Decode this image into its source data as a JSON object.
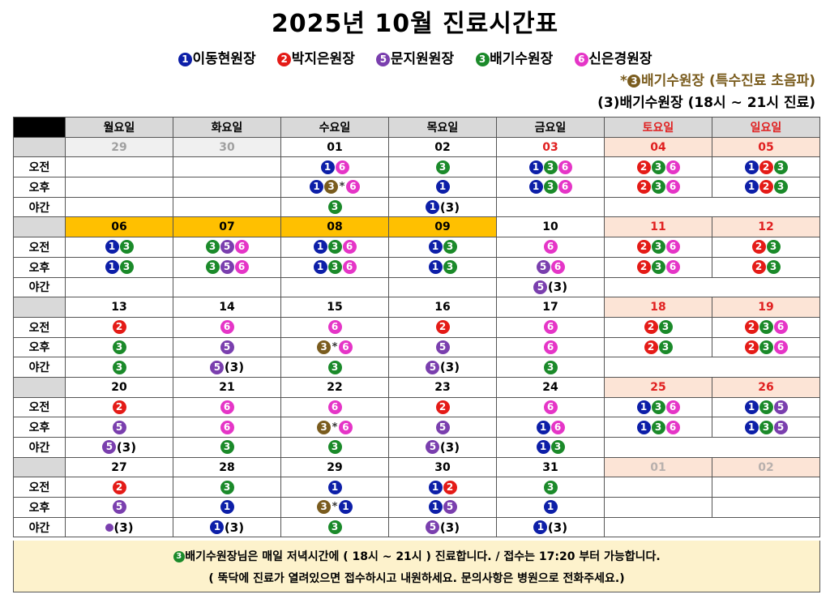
{
  "title": "2025년 10월 진료시간표",
  "legend": [
    {
      "num": "1",
      "color": "#0d1fa8",
      "name": "이동현원장"
    },
    {
      "num": "2",
      "color": "#e41b17",
      "name": "박지은원장"
    },
    {
      "num": "5",
      "color": "#7a3fae",
      "name": "문지원원장"
    },
    {
      "num": "3",
      "color": "#1b8a2a",
      "name": "배기수원장"
    },
    {
      "num": "6",
      "color": "#e535c7",
      "name": "신은경원장"
    }
  ],
  "notes": {
    "special_prefix": "*",
    "special_text": "배기수원장 (특수진료 초음파)",
    "evening": "(3)배기수원장 (18시 ~ 21시 진료)"
  },
  "days": [
    "월요일",
    "화요일",
    "수요일",
    "목요일",
    "금요일",
    "토요일",
    "일요일"
  ],
  "row_labels": {
    "am": "오전",
    "pm": "오후",
    "night": "야간"
  },
  "weeks": [
    {
      "dates": [
        "29",
        "30",
        "01",
        "02",
        "03",
        "04",
        "05"
      ],
      "am": [
        [],
        [],
        [
          "1",
          "6"
        ],
        [
          "3"
        ],
        [
          "1",
          "3",
          "6"
        ],
        [
          "2",
          "3",
          "6"
        ],
        [
          "1",
          "2",
          "3"
        ]
      ],
      "pm": [
        [],
        [],
        [
          "1",
          "3s",
          "x",
          "6"
        ],
        [
          "1"
        ],
        [
          "1",
          "3",
          "6"
        ],
        [
          "2",
          "3",
          "6"
        ],
        [
          "1",
          "2",
          "3"
        ]
      ],
      "night": [
        [],
        [],
        [
          "3"
        ],
        [
          "1",
          "(3)"
        ],
        []
      ]
    },
    {
      "dates": [
        "06",
        "07",
        "08",
        "09",
        "10",
        "11",
        "12"
      ],
      "am": [
        [
          "1",
          "3"
        ],
        [
          "3",
          "5",
          "6"
        ],
        [
          "1",
          "3",
          "6"
        ],
        [
          "1",
          "3"
        ],
        [
          "6"
        ],
        [
          "2",
          "3",
          "6"
        ],
        [
          "2",
          "3"
        ]
      ],
      "pm": [
        [
          "1",
          "3"
        ],
        [
          "3",
          "5",
          "6"
        ],
        [
          "1",
          "3",
          "6"
        ],
        [
          "1",
          "3"
        ],
        [
          "5",
          "6"
        ],
        [
          "2",
          "3",
          "6"
        ],
        [
          "2",
          "3"
        ]
      ],
      "night": [
        [],
        [],
        [],
        [],
        [
          "5",
          "(3)"
        ]
      ]
    },
    {
      "dates": [
        "13",
        "14",
        "15",
        "16",
        "17",
        "18",
        "19"
      ],
      "am": [
        [
          "2"
        ],
        [
          "6"
        ],
        [
          "6"
        ],
        [
          "2"
        ],
        [
          "6"
        ],
        [
          "2",
          "3"
        ],
        [
          "2",
          "3",
          "6"
        ]
      ],
      "pm": [
        [
          "3"
        ],
        [
          "5"
        ],
        [
          "3s",
          "x",
          "6"
        ],
        [
          "5"
        ],
        [
          "6"
        ],
        [
          "2",
          "3"
        ],
        [
          "2",
          "3",
          "6"
        ]
      ],
      "night": [
        [
          "3"
        ],
        [
          "5",
          "(3)"
        ],
        [
          "3"
        ],
        [
          "5",
          "(3)"
        ],
        [
          "3"
        ]
      ]
    },
    {
      "dates": [
        "20",
        "21",
        "22",
        "23",
        "24",
        "25",
        "26"
      ],
      "am": [
        [
          "2"
        ],
        [
          "6"
        ],
        [
          "6"
        ],
        [
          "2"
        ],
        [
          "6"
        ],
        [
          "1",
          "3",
          "6"
        ],
        [
          "1",
          "3",
          "5"
        ]
      ],
      "pm": [
        [
          "5"
        ],
        [
          "6"
        ],
        [
          "3s",
          "x",
          "6"
        ],
        [
          "5"
        ],
        [
          "1",
          "6"
        ],
        [
          "1",
          "3",
          "6"
        ],
        [
          "1",
          "3",
          "5"
        ]
      ],
      "night": [
        [
          "5",
          "(3)"
        ],
        [
          "3"
        ],
        [
          "3"
        ],
        [
          "5",
          "(3)"
        ],
        [
          "1",
          "3"
        ]
      ]
    },
    {
      "dates": [
        "27",
        "28",
        "29",
        "30",
        "31",
        "01",
        "02"
      ],
      "am": [
        [
          "2"
        ],
        [
          "3"
        ],
        [
          "1"
        ],
        [
          "1",
          "2"
        ],
        [
          "3"
        ],
        [],
        []
      ],
      "pm": [
        [
          "5"
        ],
        [
          "1"
        ],
        [
          "3s",
          "x",
          "1"
        ],
        [
          "1",
          "5"
        ],
        [
          "1"
        ],
        [],
        []
      ],
      "night": [
        [
          "5sm",
          "(3)"
        ],
        [
          "1",
          "(3)"
        ],
        [
          "3"
        ],
        [
          "5",
          "(3)"
        ],
        [
          "1",
          "(3)"
        ]
      ]
    }
  ],
  "footer": {
    "line1": "배기수원장님은 매일 저녁시간에 ( 18시 ~ 21시 ) 진료합니다.   /  접수는 17:20 부터 가능합니다.",
    "line2": "( 뚝닥에 진료가 열려있으면 접수하시고 내원하세요.  문의사항은 병원으로 전화주세요.)"
  }
}
